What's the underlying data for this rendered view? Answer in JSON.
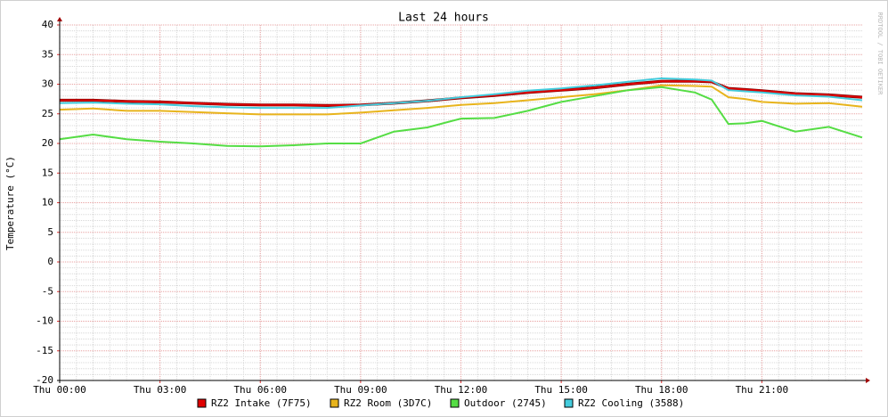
{
  "chart_data": {
    "type": "line",
    "title": "Last 24 hours",
    "y_label": "Temperature (°C)",
    "watermark": "RRDTOOL / TOBI OETIKER",
    "x": [
      0,
      1,
      2,
      3,
      4,
      5,
      6,
      7,
      8,
      9,
      10,
      11,
      12,
      13,
      14,
      15,
      16,
      17,
      18,
      19,
      19.5,
      20,
      20.5,
      21,
      22,
      23,
      24
    ],
    "xlim": [
      0,
      24
    ],
    "xticks": [
      {
        "value": 0,
        "label": "Thu 00:00"
      },
      {
        "value": 3,
        "label": "Thu 03:00"
      },
      {
        "value": 6,
        "label": "Thu 06:00"
      },
      {
        "value": 9,
        "label": "Thu 09:00"
      },
      {
        "value": 12,
        "label": "Thu 12:00"
      },
      {
        "value": 15,
        "label": "Thu 15:00"
      },
      {
        "value": 18,
        "label": "Thu 18:00"
      },
      {
        "value": 21,
        "label": "Thu 21:00"
      }
    ],
    "ylim": [
      -20,
      40
    ],
    "yticks": [
      -20,
      -15,
      -10,
      -5,
      0,
      5,
      10,
      15,
      20,
      25,
      30,
      35,
      40
    ],
    "grid": true,
    "series": [
      {
        "name": "RZ2 Intake (7F75)",
        "color": "#e00000",
        "values": [
          27.3,
          27.3,
          27.1,
          27.0,
          26.8,
          26.6,
          26.5,
          26.5,
          26.4,
          26.5,
          26.8,
          27.2,
          27.7,
          28.1,
          28.6,
          29.0,
          29.4,
          30.0,
          30.5,
          30.5,
          30.4,
          29.3,
          29.1,
          28.9,
          28.4,
          28.2,
          27.8
        ]
      },
      {
        "name": "RZ2 Room (3D7C)",
        "color": "#e8b41c",
        "values": [
          25.7,
          25.9,
          25.5,
          25.5,
          25.3,
          25.1,
          24.9,
          24.9,
          24.9,
          25.2,
          25.6,
          26.0,
          26.5,
          26.8,
          27.3,
          27.8,
          28.3,
          29.0,
          29.8,
          29.7,
          29.6,
          27.8,
          27.5,
          27.0,
          26.7,
          26.8,
          26.2
        ]
      },
      {
        "name": "Outdoor (2745)",
        "color": "#55dd44",
        "values": [
          20.7,
          21.5,
          20.7,
          20.3,
          20.0,
          19.6,
          19.5,
          19.7,
          20.0,
          20.0,
          22.0,
          22.7,
          24.2,
          24.3,
          25.5,
          27.0,
          28.0,
          29.0,
          29.5,
          28.6,
          27.4,
          23.3,
          23.4,
          23.8,
          22.0,
          22.8,
          21.0
        ]
      },
      {
        "name": "RZ2 Cooling (3588)",
        "color": "#44ccdd",
        "values": [
          26.8,
          26.9,
          26.7,
          26.6,
          26.3,
          26.1,
          26.0,
          26.0,
          26.0,
          26.4,
          26.8,
          27.2,
          27.8,
          28.3,
          28.9,
          29.3,
          29.8,
          30.4,
          31.0,
          30.8,
          30.6,
          29.0,
          28.8,
          28.6,
          28.1,
          27.9,
          27.3
        ]
      }
    ]
  }
}
